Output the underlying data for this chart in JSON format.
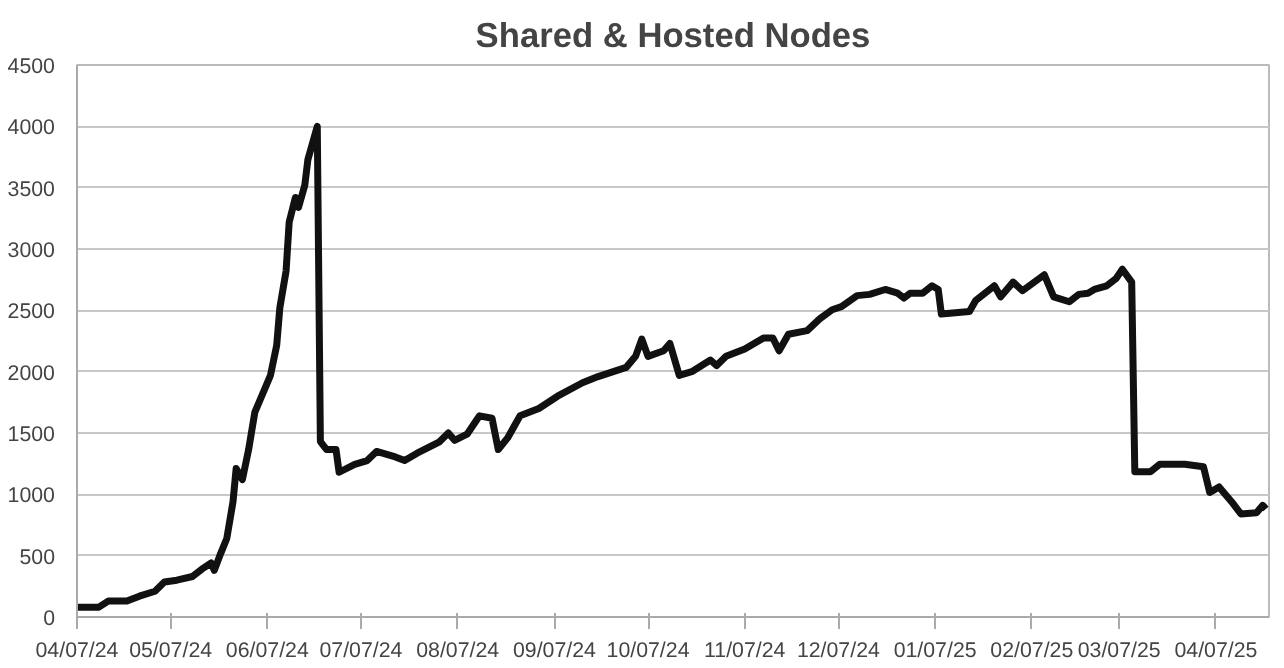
{
  "chart_data": {
    "type": "line",
    "title": "Shared & Hosted Nodes",
    "x": [
      "2024-04-07",
      "2024-04-14",
      "2024-04-17",
      "2024-04-23",
      "2024-04-27",
      "2024-05-02",
      "2024-05-05",
      "2024-05-09",
      "2024-05-14",
      "2024-05-17",
      "2024-05-20",
      "2024-05-21",
      "2024-05-23",
      "2024-05-25",
      "2024-05-27",
      "2024-05-28",
      "2024-05-30",
      "2024-06-01",
      "2024-06-03",
      "2024-06-06",
      "2024-06-08",
      "2024-06-10",
      "2024-06-11",
      "2024-06-13",
      "2024-06-14",
      "2024-06-16",
      "2024-06-17",
      "2024-06-19",
      "2024-06-20",
      "2024-06-23",
      "2024-06-24",
      "2024-06-26",
      "2024-06-29",
      "2024-06-30",
      "2024-07-05",
      "2024-07-09",
      "2024-07-12",
      "2024-07-18",
      "2024-07-21",
      "2024-07-25",
      "2024-08-01",
      "2024-08-04",
      "2024-08-06",
      "2024-08-10",
      "2024-08-14",
      "2024-08-18",
      "2024-08-20",
      "2024-08-23",
      "2024-08-27",
      "2024-09-02",
      "2024-09-08",
      "2024-09-16",
      "2024-09-21",
      "2024-09-30",
      "2024-10-03",
      "2024-10-05",
      "2024-10-07",
      "2024-10-12",
      "2024-10-14",
      "2024-10-17",
      "2024-10-21",
      "2024-10-27",
      "2024-10-29",
      "2024-11-01",
      "2024-11-07",
      "2024-11-13",
      "2024-11-16",
      "2024-11-18",
      "2024-11-21",
      "2024-11-27",
      "2024-12-01",
      "2024-12-05",
      "2024-12-08",
      "2024-12-13",
      "2024-12-17",
      "2024-12-22",
      "2024-12-26",
      "2024-12-28",
      "2024-12-30",
      "2025-01-03",
      "2025-01-06",
      "2025-01-08",
      "2025-01-09",
      "2025-01-18",
      "2025-01-20",
      "2025-01-26",
      "2025-01-28",
      "2025-02-01",
      "2025-02-04",
      "2025-02-11",
      "2025-02-14",
      "2025-02-19",
      "2025-02-22",
      "2025-02-25",
      "2025-02-27",
      "2025-03-03",
      "2025-03-06",
      "2025-03-08",
      "2025-03-11",
      "2025-03-12",
      "2025-03-17",
      "2025-03-20",
      "2025-03-28",
      "2025-04-03",
      "2025-04-05",
      "2025-04-08",
      "2025-04-12",
      "2025-04-15",
      "2025-04-20",
      "2025-04-22",
      "2025-04-23"
    ],
    "series": [
      {
        "color": "#111111",
        "values": [
          80,
          80,
          130,
          130,
          170,
          210,
          285,
          300,
          330,
          390,
          440,
          380,
          515,
          640,
          940,
          1210,
          1120,
          1365,
          1670,
          1850,
          1970,
          2215,
          2520,
          2820,
          3220,
          3420,
          3340,
          3520,
          3730,
          4000,
          1430,
          1365,
          1365,
          1180,
          1245,
          1275,
          1350,
          1305,
          1275,
          1335,
          1425,
          1500,
          1440,
          1490,
          1640,
          1620,
          1365,
          1460,
          1640,
          1700,
          1800,
          1910,
          1960,
          2035,
          2125,
          2265,
          2125,
          2170,
          2230,
          1970,
          2000,
          2095,
          2050,
          2125,
          2185,
          2275,
          2275,
          2170,
          2305,
          2335,
          2430,
          2505,
          2530,
          2620,
          2630,
          2670,
          2640,
          2600,
          2640,
          2640,
          2700,
          2670,
          2470,
          2490,
          2580,
          2700,
          2610,
          2730,
          2660,
          2790,
          2610,
          2570,
          2630,
          2640,
          2670,
          2700,
          2760,
          2835,
          2730,
          1185,
          1185,
          1245,
          1245,
          1225,
          1015,
          1060,
          940,
          840,
          850,
          910,
          880
        ]
      }
    ],
    "xlim": [
      "2024-04-07",
      "2025-04-24"
    ],
    "xticks": [
      {
        "value": "2024-04-07",
        "label": "04/07/24"
      },
      {
        "value": "2024-05-07",
        "label": "05/07/24"
      },
      {
        "value": "2024-06-07",
        "label": "06/07/24"
      },
      {
        "value": "2024-07-07",
        "label": "07/07/24"
      },
      {
        "value": "2024-08-07",
        "label": "08/07/24"
      },
      {
        "value": "2024-09-07",
        "label": "09/07/24"
      },
      {
        "value": "2024-10-07",
        "label": "10/07/24"
      },
      {
        "value": "2024-11-07",
        "label": "11/07/24"
      },
      {
        "value": "2024-12-07",
        "label": "12/07/24"
      },
      {
        "value": "2025-01-07",
        "label": "01/07/25"
      },
      {
        "value": "2025-02-07",
        "label": "02/07/25"
      },
      {
        "value": "2025-03-07",
        "label": "03/07/25"
      },
      {
        "value": "2025-04-07",
        "label": "04/07/25"
      }
    ],
    "ylim": [
      0,
      4500
    ],
    "yticks": [
      0,
      500,
      1000,
      1500,
      2000,
      2500,
      3000,
      3500,
      4000,
      4500
    ],
    "grid": "y",
    "marker": "none",
    "line_style": "solid"
  }
}
